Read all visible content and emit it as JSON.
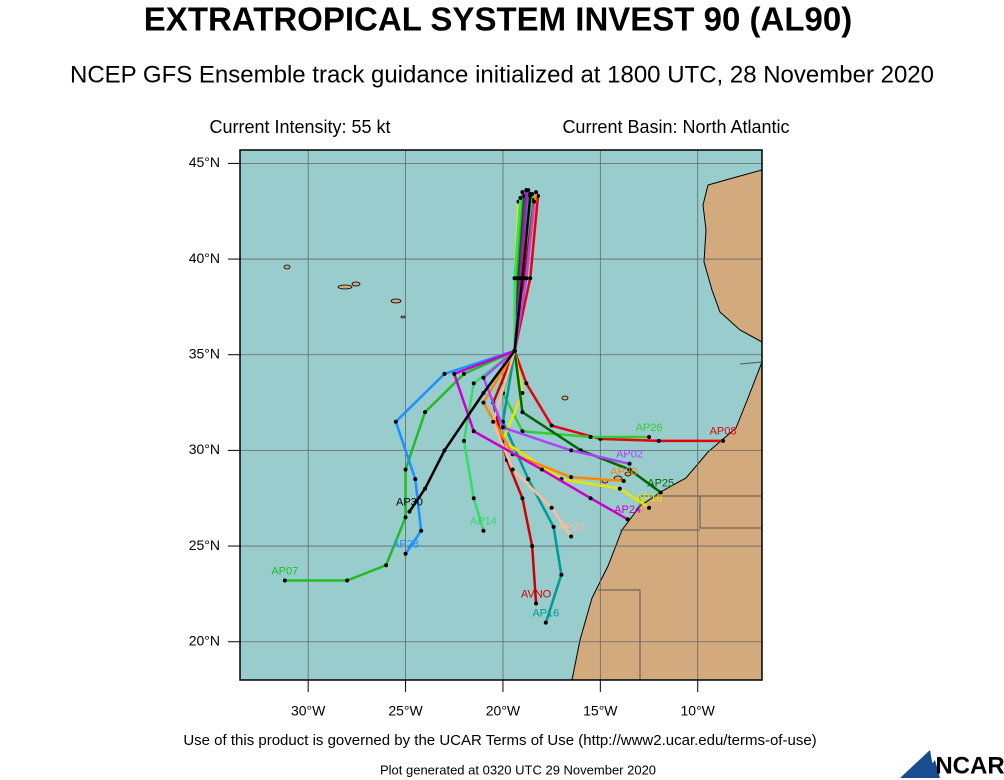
{
  "header": {
    "title": "EXTRATROPICAL SYSTEM INVEST 90 (AL90)",
    "subtitle": "NCEP GFS Ensemble track guidance initialized at 1800 UTC, 28 November 2020",
    "intensity": "Current Intensity: 55 kt",
    "basin": "Current Basin: North Atlantic"
  },
  "map": {
    "xlim": [
      -33.5,
      -6.7
    ],
    "ylim": [
      18,
      45.7
    ],
    "xticks": [
      {
        "value": -30,
        "label": "30°W"
      },
      {
        "value": -25,
        "label": "25°W"
      },
      {
        "value": -20,
        "label": "20°W"
      },
      {
        "value": -15,
        "label": "15°W"
      },
      {
        "value": -10,
        "label": "10°W"
      }
    ],
    "yticks": [
      {
        "value": 20,
        "label": "20°N"
      },
      {
        "value": 25,
        "label": "25°N"
      },
      {
        "value": 30,
        "label": "30°N"
      },
      {
        "value": 35,
        "label": "35°N"
      },
      {
        "value": 40,
        "label": "40°N"
      },
      {
        "value": 45,
        "label": "45°N"
      }
    ],
    "tracks": [
      {
        "name": "AP08",
        "color": "#e8000b",
        "lon": [
          -18.2,
          -18.6,
          -19.4,
          -18.8,
          -17.5,
          -15,
          -12,
          -8.7
        ],
        "lat": [
          43.3,
          39,
          35.2,
          33.5,
          31.3,
          30.6,
          30.5,
          30.5
        ]
      },
      {
        "name": "AP26",
        "color": "#33cc33",
        "lon": [
          -18.5,
          -19.0,
          -19.4,
          -20,
          -19,
          -15.5,
          -12.5
        ],
        "lat": [
          43.4,
          39,
          35.2,
          33,
          31,
          30.7,
          30.7
        ]
      },
      {
        "name": "AP07",
        "color": "#22bb22",
        "lon": [
          -19.0,
          -19.3,
          -19.4,
          -22,
          -24,
          -25,
          -25,
          -26,
          -28,
          -31.2
        ],
        "lat": [
          43.5,
          39,
          35.2,
          34,
          32,
          29,
          26.5,
          24,
          23.2,
          23.2
        ]
      },
      {
        "name": "AP28",
        "color": "#1e90ff",
        "lon": [
          -18.8,
          -19.2,
          -19.4,
          -23,
          -25.5,
          -24.5,
          -24.2,
          -25
        ],
        "lat": [
          43.2,
          39,
          35.2,
          34,
          31.5,
          28.5,
          25.8,
          24.6
        ]
      },
      {
        "name": "AVNO",
        "color": "#cc0000",
        "lon": [
          -18.4,
          -18.9,
          -19.4,
          -20.5,
          -19.8,
          -19,
          -18.5,
          -18.3
        ],
        "lat": [
          43.1,
          39,
          35.2,
          32.5,
          29.5,
          27.5,
          25,
          22
        ]
      },
      {
        "name": "AP16",
        "color": "#009999",
        "lon": [
          -18.7,
          -19.1,
          -19.4,
          -20,
          -18.7,
          -17.4,
          -17,
          -17.8
        ],
        "lat": [
          43.6,
          39,
          35.2,
          31.5,
          28.5,
          26,
          23.5,
          21
        ]
      },
      {
        "name": "AP18",
        "color": "#e6e600",
        "lon": [
          -19.2,
          -19.4,
          -19.4,
          -19,
          -20,
          -17,
          -14,
          -12.5
        ],
        "lat": [
          43.0,
          39,
          35.2,
          33,
          30.5,
          28.5,
          28,
          27
        ]
      },
      {
        "name": "AP25",
        "color": "#006600",
        "lon": [
          -18.9,
          -19.2,
          -19.4,
          -19,
          -16,
          -13.5,
          -11.9
        ],
        "lat": [
          43.3,
          39,
          35.2,
          32,
          30,
          29,
          27.8
        ]
      },
      {
        "name": "AP20",
        "color": "#ff8800",
        "lon": [
          -18.3,
          -18.8,
          -19.4,
          -21,
          -19.5,
          -16.5,
          -13.8
        ],
        "lat": [
          43.5,
          39,
          35.2,
          32.5,
          29.8,
          28.6,
          28.4
        ]
      },
      {
        "name": "AP14",
        "color": "#33dd66",
        "lon": [
          -19.1,
          -19.4,
          -19.4,
          -21.5,
          -22,
          -21.5,
          -21
        ],
        "lat": [
          43.2,
          39,
          35.2,
          33.5,
          30.5,
          27.5,
          25.8
        ]
      },
      {
        "name": "AP22",
        "color": "#ffbb99",
        "lon": [
          -18.6,
          -19.0,
          -19.4,
          -20.5,
          -19.5,
          -17.5,
          -16.5
        ],
        "lat": [
          43.4,
          39,
          35.2,
          31.5,
          29,
          27,
          25.5
        ]
      },
      {
        "name": "AP02",
        "color": "#aa44ff",
        "lon": [
          -18.4,
          -18.8,
          -19.4,
          -21,
          -20,
          -16.5,
          -13.5
        ],
        "lat": [
          43.0,
          39,
          35.2,
          33.8,
          31.2,
          30,
          29.3
        ]
      },
      {
        "name": "AP24",
        "color": "#cc00cc",
        "lon": [
          -18.8,
          -19.1,
          -19.4,
          -22.5,
          -21.5,
          -18,
          -15.5,
          -13.6
        ],
        "lat": [
          43.6,
          39,
          35.2,
          34,
          31,
          29,
          27.5,
          26.4
        ]
      },
      {
        "name": "AP30",
        "color": "#000000",
        "lon": [
          -18.6,
          -19.0,
          -19.4,
          -21,
          -23,
          -24,
          -24.8
        ],
        "lat": [
          43.3,
          39,
          35.2,
          33,
          30,
          28,
          26.8
        ]
      }
    ]
  },
  "footer": {
    "terms": "Use of this product is governed by the UCAR Terms of Use (http://www2.ucar.edu/terms-of-use)",
    "generated": "Plot generated at 0320 UTC   29 November 2020",
    "logo": "NCAR"
  }
}
